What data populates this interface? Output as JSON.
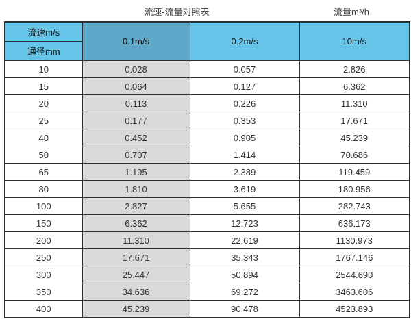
{
  "page_titles": {
    "left": "流速-流量对照表",
    "right": "流量m³/h"
  },
  "table": {
    "header": {
      "corner_top": "流速m/s",
      "corner_bottom": "通径mm",
      "velocity_columns": [
        "0.1m/s",
        "0.2m/s",
        "10m/s"
      ]
    },
    "rows": [
      [
        "10",
        "0.028",
        "0.057",
        "2.826"
      ],
      [
        "15",
        "0.064",
        "0.127",
        "6.362"
      ],
      [
        "20",
        "0.113",
        "0.226",
        "11.310"
      ],
      [
        "25",
        "0.177",
        "0.353",
        "17.671"
      ],
      [
        "40",
        "0.452",
        "0.905",
        "45.239"
      ],
      [
        "50",
        "0.707",
        "1.414",
        "70.686"
      ],
      [
        "65",
        "1.195",
        "2.389",
        "119.459"
      ],
      [
        "80",
        "1.810",
        "3.619",
        "180.956"
      ],
      [
        "100",
        "2.827",
        "5.655",
        "282.743"
      ],
      [
        "150",
        "6.362",
        "12.723",
        "636.173"
      ],
      [
        "200",
        "11.310",
        "22.619",
        "1130.973"
      ],
      [
        "250",
        "17.671",
        "35.343",
        "1767.146"
      ],
      [
        "300",
        "25.447",
        "50.894",
        "2544.690"
      ],
      [
        "350",
        "34.636",
        "69.272",
        "3463.606"
      ],
      [
        "400",
        "45.239",
        "90.478",
        "4523.893"
      ]
    ]
  },
  "chart_data": {
    "type": "table",
    "title": "流速-流量对照表",
    "flow_unit_label": "流量m³/h",
    "row_dimension": "通径mm",
    "col_dimension": "流速m/s",
    "columns": [
      "0.1m/s",
      "0.2m/s",
      "10m/s"
    ],
    "diameters_mm": [
      10,
      15,
      20,
      25,
      40,
      50,
      65,
      80,
      100,
      150,
      200,
      250,
      300,
      350,
      400
    ],
    "series": [
      {
        "name": "0.1m/s",
        "values": [
          0.028,
          0.064,
          0.113,
          0.177,
          0.452,
          0.707,
          1.195,
          1.81,
          2.827,
          6.362,
          11.31,
          17.671,
          25.447,
          34.636,
          45.239
        ]
      },
      {
        "name": "0.2m/s",
        "values": [
          0.057,
          0.127,
          0.226,
          0.353,
          0.905,
          1.414,
          2.389,
          3.619,
          5.655,
          12.723,
          22.619,
          35.343,
          50.894,
          69.272,
          90.478
        ]
      },
      {
        "name": "10m/s",
        "values": [
          2.826,
          6.362,
          11.31,
          17.671,
          45.239,
          70.686,
          119.459,
          180.956,
          282.743,
          636.173,
          1130.973,
          1767.146,
          2544.69,
          3463.606,
          4523.893
        ]
      }
    ]
  },
  "colors": {
    "header_blue": "#68c5ea",
    "header_dark_blue": "#5fa8c9",
    "gray_column": "#d9d9d9",
    "border": "#2e2e2e"
  }
}
